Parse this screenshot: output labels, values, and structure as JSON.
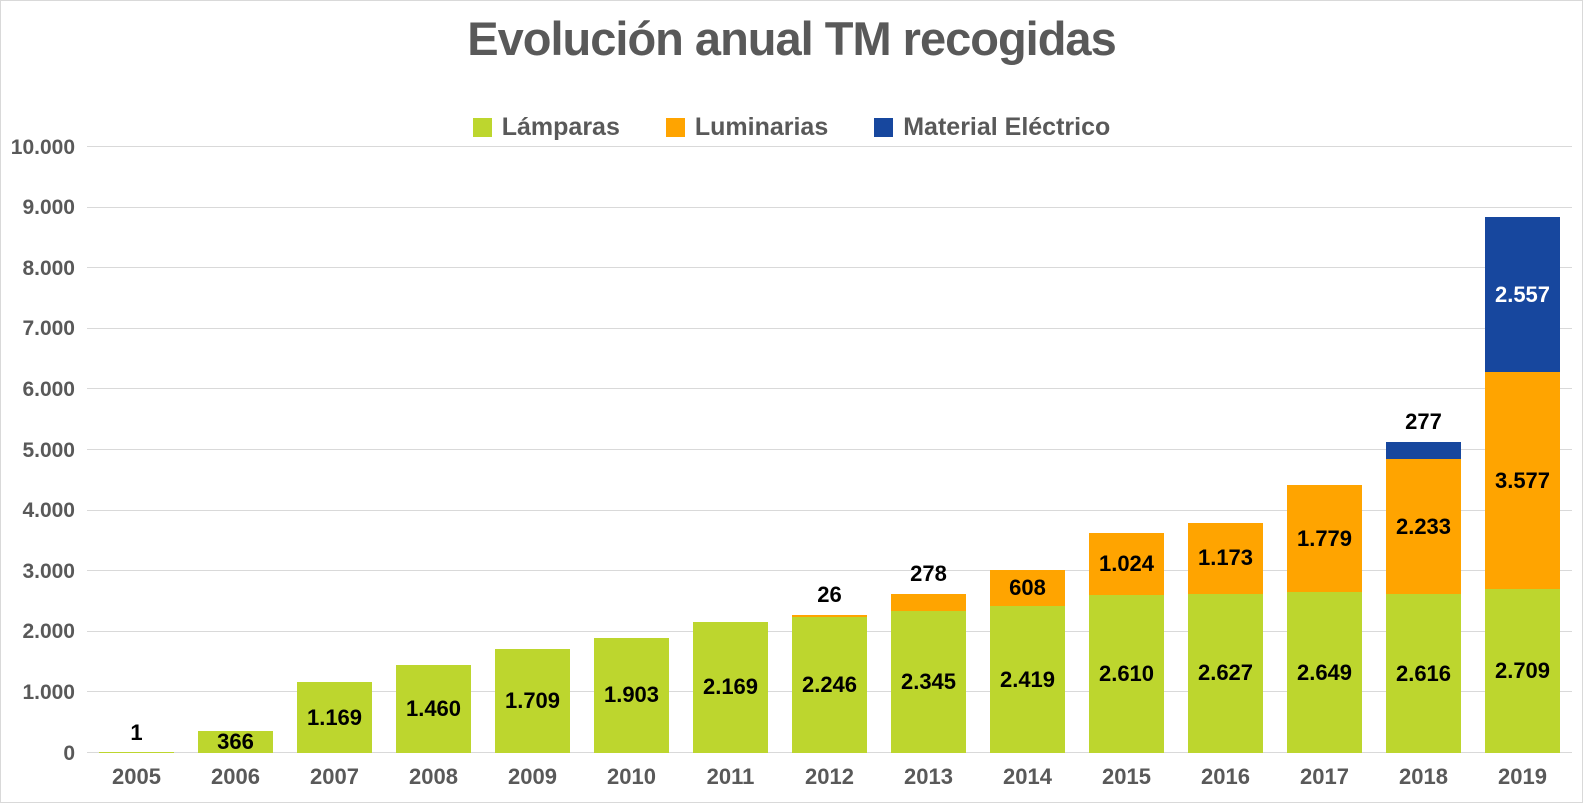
{
  "chart_data": {
    "type": "bar",
    "stacked": true,
    "title": "Evolución anual TM recogidas",
    "categories": [
      "2005",
      "2006",
      "2007",
      "2008",
      "2009",
      "2010",
      "2011",
      "2012",
      "2013",
      "2014",
      "2015",
      "2016",
      "2017",
      "2018",
      "2019"
    ],
    "series": [
      {
        "name": "Lámparas",
        "color": "#BDD62E",
        "values": [
          1,
          366,
          1169,
          1460,
          1709,
          1903,
          2169,
          2246,
          2345,
          2419,
          2610,
          2627,
          2649,
          2616,
          2709
        ]
      },
      {
        "name": "Luminarias",
        "color": "#FFA400",
        "values": [
          0,
          0,
          0,
          0,
          0,
          0,
          0,
          26,
          278,
          608,
          1024,
          1173,
          1779,
          2233,
          3577
        ]
      },
      {
        "name": "Material Eléctrico",
        "color": "#17479E",
        "values": [
          0,
          0,
          0,
          0,
          0,
          0,
          0,
          0,
          0,
          0,
          0,
          0,
          0,
          277,
          2557
        ]
      }
    ],
    "ylim": [
      0,
      10000
    ],
    "y_tick_step": 1000,
    "y_tick_labels": [
      "0",
      "1.000",
      "2.000",
      "3.000",
      "4.000",
      "5.000",
      "6.000",
      "7.000",
      "8.000",
      "9.000",
      "10.000"
    ],
    "grid": true,
    "legend_position": "top",
    "number_format": "thousands-dot",
    "data_label_inside_color": "#000000",
    "data_label_inside_material_color": "#FFFFFF",
    "data_label_above_color": "#000000"
  },
  "styles": {
    "background": "#FFFFFF",
    "border_color": "#D9D9D9",
    "text_color": "#595959",
    "gridline_color": "#D9D9D9"
  }
}
